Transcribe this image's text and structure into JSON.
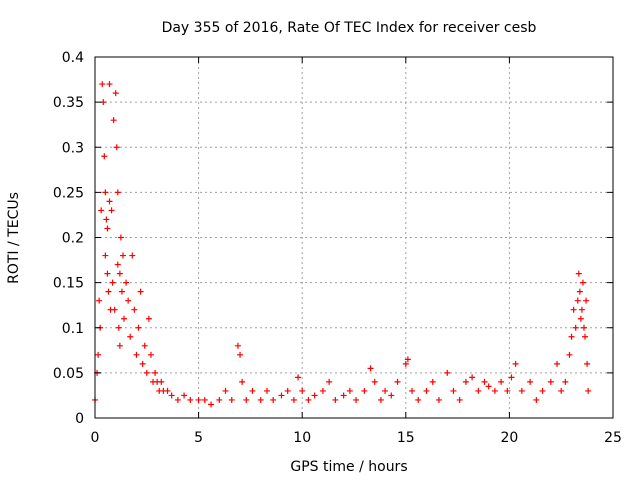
{
  "chart_data": {
    "type": "scatter",
    "title": "Day 355 of 2016, Rate Of TEC Index for receiver cesb",
    "xlabel": "GPS time / hours",
    "ylabel": "ROTI / TECUs",
    "xlim": [
      0,
      25
    ],
    "ylim": [
      0,
      0.4
    ],
    "x_ticks": [
      0,
      5,
      10,
      15,
      20,
      25
    ],
    "x_tick_labels": [
      "0",
      "5",
      "10",
      "15",
      "20",
      "25"
    ],
    "y_ticks": [
      0,
      0.05,
      0.1,
      0.15,
      0.2,
      0.25,
      0.3,
      0.35,
      0.4
    ],
    "y_tick_labels": [
      "0",
      "0.05",
      "0.1",
      "0.15",
      "0.2",
      "0.25",
      "0.3",
      "0.35",
      "0.4"
    ],
    "grid": true,
    "marker": "+",
    "color": "#ff0000",
    "series": [
      {
        "name": "ROTI",
        "x": [
          0.0,
          0.1,
          0.15,
          0.2,
          0.25,
          0.3,
          0.35,
          0.4,
          0.45,
          0.5,
          0.5,
          0.55,
          0.6,
          0.6,
          0.65,
          0.7,
          0.7,
          0.75,
          0.8,
          0.85,
          0.9,
          0.95,
          1.0,
          1.05,
          1.1,
          1.1,
          1.15,
          1.2,
          1.2,
          1.25,
          1.3,
          1.35,
          1.4,
          1.5,
          1.6,
          1.7,
          1.8,
          1.9,
          2.0,
          2.1,
          2.2,
          2.3,
          2.4,
          2.5,
          2.6,
          2.7,
          2.8,
          2.9,
          3.0,
          3.1,
          3.2,
          3.3,
          3.5,
          3.7,
          4.0,
          4.3,
          4.6,
          5.0,
          5.3,
          5.6,
          6.0,
          6.3,
          6.6,
          6.9,
          7.0,
          7.1,
          7.3,
          7.6,
          8.0,
          8.3,
          8.6,
          9.0,
          9.3,
          9.6,
          9.8,
          10.0,
          10.3,
          10.6,
          11.0,
          11.3,
          11.6,
          12.0,
          12.3,
          12.6,
          13.0,
          13.3,
          13.5,
          13.8,
          14.0,
          14.3,
          14.6,
          15.0,
          15.1,
          15.3,
          15.6,
          16.0,
          16.3,
          16.6,
          17.0,
          17.3,
          17.6,
          17.9,
          18.2,
          18.5,
          18.8,
          19.0,
          19.3,
          19.6,
          19.9,
          20.1,
          20.3,
          20.6,
          21.0,
          21.3,
          21.6,
          22.0,
          22.3,
          22.5,
          22.7,
          22.9,
          23.0,
          23.1,
          23.2,
          23.3,
          23.35,
          23.4,
          23.45,
          23.5,
          23.55,
          23.6,
          23.65,
          23.7,
          23.75,
          23.8
        ],
        "y": [
          0.02,
          0.05,
          0.07,
          0.13,
          0.1,
          0.23,
          0.37,
          0.35,
          0.29,
          0.25,
          0.18,
          0.22,
          0.21,
          0.16,
          0.14,
          0.24,
          0.37,
          0.12,
          0.23,
          0.15,
          0.33,
          0.12,
          0.36,
          0.3,
          0.25,
          0.17,
          0.1,
          0.16,
          0.08,
          0.2,
          0.14,
          0.18,
          0.11,
          0.15,
          0.13,
          0.09,
          0.18,
          0.12,
          0.07,
          0.1,
          0.14,
          0.06,
          0.08,
          0.05,
          0.11,
          0.07,
          0.04,
          0.05,
          0.04,
          0.03,
          0.04,
          0.03,
          0.03,
          0.025,
          0.02,
          0.025,
          0.02,
          0.02,
          0.02,
          0.015,
          0.02,
          0.03,
          0.02,
          0.08,
          0.07,
          0.04,
          0.02,
          0.03,
          0.02,
          0.03,
          0.02,
          0.025,
          0.03,
          0.02,
          0.045,
          0.03,
          0.02,
          0.025,
          0.03,
          0.04,
          0.02,
          0.025,
          0.03,
          0.02,
          0.03,
          0.055,
          0.04,
          0.02,
          0.03,
          0.025,
          0.04,
          0.06,
          0.065,
          0.03,
          0.02,
          0.03,
          0.04,
          0.02,
          0.05,
          0.03,
          0.02,
          0.04,
          0.045,
          0.03,
          0.04,
          0.035,
          0.03,
          0.04,
          0.03,
          0.045,
          0.06,
          0.03,
          0.04,
          0.02,
          0.03,
          0.04,
          0.06,
          0.03,
          0.04,
          0.07,
          0.09,
          0.12,
          0.1,
          0.13,
          0.16,
          0.14,
          0.11,
          0.12,
          0.15,
          0.1,
          0.09,
          0.13,
          0.06,
          0.03
        ]
      }
    ]
  }
}
